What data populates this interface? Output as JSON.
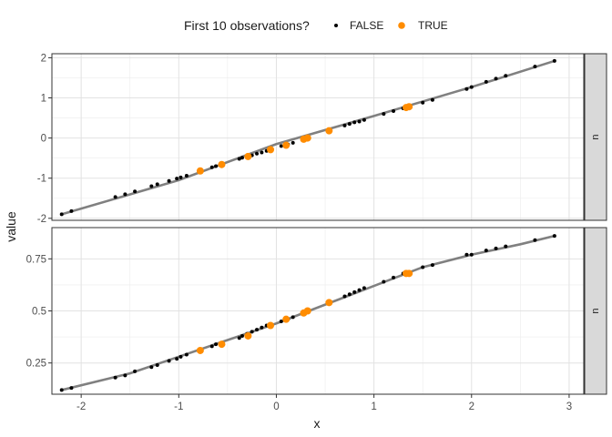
{
  "chart_data": {
    "type": "scatter",
    "xlabel": "x",
    "ylabel": "value",
    "legend": {
      "title": "First 10 observations?",
      "position": "top",
      "entries": [
        {
          "label": "FALSE",
          "color": "#000000"
        },
        {
          "label": "TRUE",
          "color": "#ff8c00"
        }
      ]
    },
    "xlim": [
      -2.3,
      3.15
    ],
    "x_ticks": [
      -2,
      -1,
      0,
      1,
      2,
      3
    ],
    "grid": true,
    "line_color": "#808080",
    "panels": [
      {
        "strip": "u",
        "ylim": [
          -2.05,
          2.1
        ],
        "y_ticks": [
          2,
          1,
          0,
          -1,
          -2
        ],
        "curve": [
          [
            -2.2,
            -1.9
          ],
          [
            -1.0,
            -1.05
          ],
          [
            0.0,
            -0.15
          ],
          [
            1.0,
            0.55
          ],
          [
            2.0,
            1.27
          ],
          [
            2.85,
            1.92
          ]
        ],
        "false_points": [
          [
            -2.2,
            -1.9
          ],
          [
            -2.1,
            -1.82
          ],
          [
            -1.65,
            -1.47
          ],
          [
            -1.55,
            -1.4
          ],
          [
            -1.45,
            -1.33
          ],
          [
            -1.28,
            -1.2
          ],
          [
            -1.22,
            -1.15
          ],
          [
            -1.1,
            -1.07
          ],
          [
            -1.02,
            -1.01
          ],
          [
            -0.98,
            -0.98
          ],
          [
            -0.92,
            -0.94
          ],
          [
            -0.66,
            -0.73
          ],
          [
            -0.62,
            -0.7
          ],
          [
            -0.38,
            -0.52
          ],
          [
            -0.35,
            -0.49
          ],
          [
            -0.3,
            -0.46
          ],
          [
            -0.25,
            -0.43
          ],
          [
            -0.2,
            -0.39
          ],
          [
            -0.15,
            -0.36
          ],
          [
            -0.1,
            -0.32
          ],
          [
            0.05,
            -0.2
          ],
          [
            0.12,
            -0.16
          ],
          [
            0.17,
            -0.12
          ],
          [
            0.7,
            0.31
          ],
          [
            0.75,
            0.35
          ],
          [
            0.8,
            0.39
          ],
          [
            0.85,
            0.41
          ],
          [
            0.9,
            0.45
          ],
          [
            1.1,
            0.6
          ],
          [
            1.2,
            0.67
          ],
          [
            1.3,
            0.74
          ],
          [
            1.5,
            0.88
          ],
          [
            1.6,
            0.95
          ],
          [
            1.95,
            1.22
          ],
          [
            2.0,
            1.27
          ],
          [
            2.15,
            1.4
          ],
          [
            2.25,
            1.48
          ],
          [
            2.35,
            1.55
          ],
          [
            2.65,
            1.78
          ],
          [
            2.85,
            1.92
          ]
        ],
        "true_points": [
          [
            -0.78,
            -0.82
          ],
          [
            -0.56,
            -0.66
          ],
          [
            -0.29,
            -0.46
          ],
          [
            -0.06,
            -0.29
          ],
          [
            0.1,
            -0.18
          ],
          [
            0.28,
            -0.03
          ],
          [
            0.32,
            0.0
          ],
          [
            0.54,
            0.18
          ],
          [
            1.33,
            0.76
          ],
          [
            1.36,
            0.78
          ]
        ]
      },
      {
        "strip": "u",
        "ylim": [
          0.1,
          0.9
        ],
        "y_ticks": [
          0.75,
          0.5,
          0.25
        ],
        "curve": [
          [
            -2.2,
            0.12
          ],
          [
            -1.5,
            0.2
          ],
          [
            -1.0,
            0.28
          ],
          [
            -0.5,
            0.36
          ],
          [
            0.0,
            0.44
          ],
          [
            0.5,
            0.53
          ],
          [
            1.0,
            0.62
          ],
          [
            1.5,
            0.71
          ],
          [
            2.0,
            0.77
          ],
          [
            2.5,
            0.82
          ],
          [
            2.85,
            0.86
          ]
        ],
        "false_points": [
          [
            -2.2,
            0.12
          ],
          [
            -2.1,
            0.13
          ],
          [
            -1.65,
            0.18
          ],
          [
            -1.55,
            0.19
          ],
          [
            -1.45,
            0.21
          ],
          [
            -1.28,
            0.23
          ],
          [
            -1.22,
            0.24
          ],
          [
            -1.1,
            0.26
          ],
          [
            -1.02,
            0.27
          ],
          [
            -0.98,
            0.28
          ],
          [
            -0.92,
            0.29
          ],
          [
            -0.66,
            0.33
          ],
          [
            -0.62,
            0.34
          ],
          [
            -0.38,
            0.37
          ],
          [
            -0.35,
            0.38
          ],
          [
            -0.3,
            0.39
          ],
          [
            -0.25,
            0.4
          ],
          [
            -0.2,
            0.41
          ],
          [
            -0.15,
            0.42
          ],
          [
            -0.1,
            0.43
          ],
          [
            0.05,
            0.45
          ],
          [
            0.12,
            0.46
          ],
          [
            0.17,
            0.47
          ],
          [
            0.7,
            0.57
          ],
          [
            0.75,
            0.58
          ],
          [
            0.8,
            0.59
          ],
          [
            0.85,
            0.6
          ],
          [
            0.9,
            0.61
          ],
          [
            1.1,
            0.64
          ],
          [
            1.2,
            0.66
          ],
          [
            1.3,
            0.68
          ],
          [
            1.5,
            0.71
          ],
          [
            1.6,
            0.72
          ],
          [
            1.95,
            0.77
          ],
          [
            2.0,
            0.77
          ],
          [
            2.15,
            0.79
          ],
          [
            2.25,
            0.8
          ],
          [
            2.35,
            0.81
          ],
          [
            2.65,
            0.84
          ],
          [
            2.85,
            0.86
          ]
        ],
        "true_points": [
          [
            -0.78,
            0.31
          ],
          [
            -0.56,
            0.34
          ],
          [
            -0.29,
            0.38
          ],
          [
            -0.06,
            0.43
          ],
          [
            0.1,
            0.46
          ],
          [
            0.28,
            0.49
          ],
          [
            0.32,
            0.5
          ],
          [
            0.54,
            0.54
          ],
          [
            1.33,
            0.68
          ],
          [
            1.36,
            0.68
          ]
        ]
      }
    ]
  }
}
